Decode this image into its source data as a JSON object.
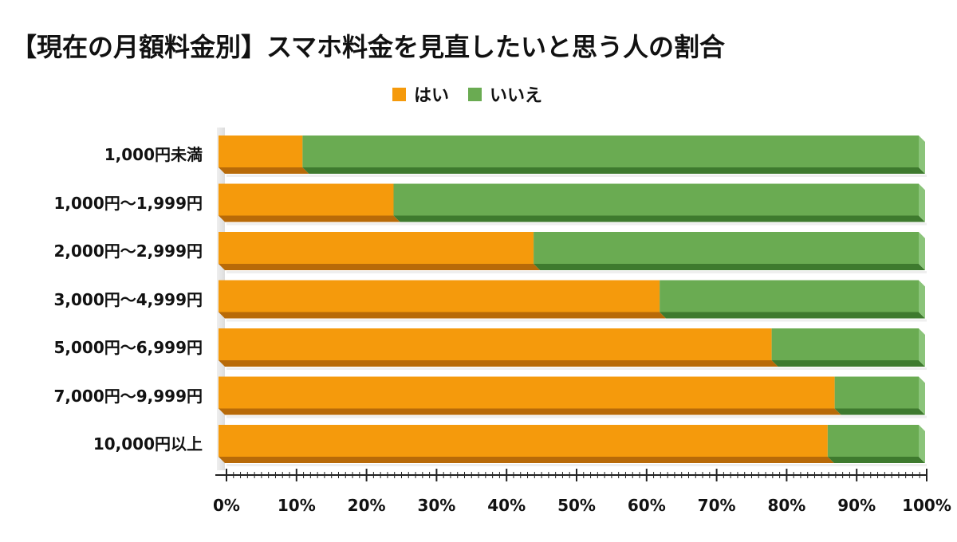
{
  "title": "【現在の月額料金別】スマホ料金を見直したいと思う人の割合",
  "legend": [
    {
      "label": "はい",
      "color": "#F59A0C"
    },
    {
      "label": "いいえ",
      "color": "#6AAB52"
    }
  ],
  "colors": {
    "yes_face": "#F59A0C",
    "yes_bottom": "#B86A08",
    "no_face": "#6AAB52",
    "no_bottom": "#3E7A2E",
    "no_side": "#8BC47A"
  },
  "chart_data": {
    "type": "bar",
    "orientation": "horizontal",
    "stacked": true,
    "percent_stacked": true,
    "title": "【現在の月額料金別】スマホ料金を見直したいと思う人の割合",
    "categories": [
      "1,000円未満",
      "1,000円～1,999円",
      "2,000円～2,999円",
      "3,000円～4,999円",
      "5,000円～6,999円",
      "7,000円～9,999円",
      "10,000円以上"
    ],
    "series": [
      {
        "name": "はい",
        "values": [
          12,
          25,
          45,
          63,
          79,
          88,
          87
        ]
      },
      {
        "name": "いいえ",
        "values": [
          88,
          75,
          55,
          37,
          21,
          12,
          13
        ]
      }
    ],
    "xlabel": "",
    "ylabel": "",
    "xlim": [
      0,
      100
    ],
    "xticks": [
      "0%",
      "10%",
      "20%",
      "30%",
      "40%",
      "50%",
      "60%",
      "70%",
      "80%",
      "90%",
      "100%"
    ],
    "legend_position": "top",
    "grid": false
  }
}
